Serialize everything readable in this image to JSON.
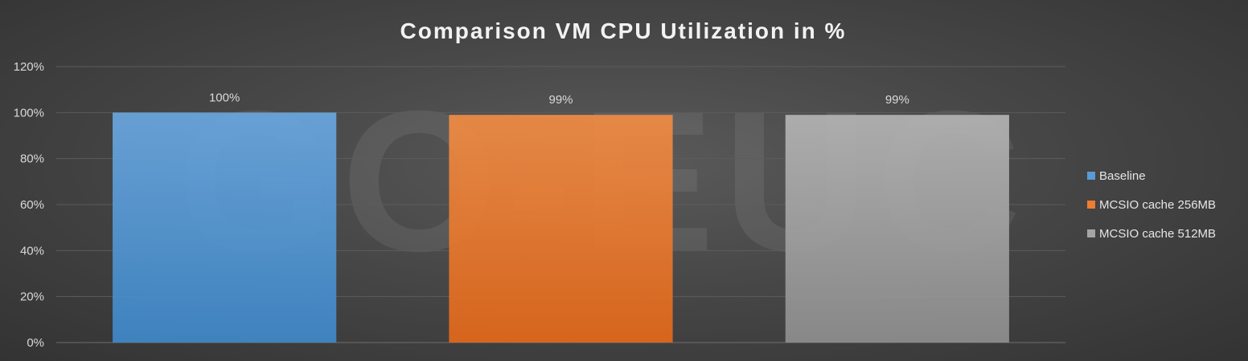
{
  "chart_data": {
    "type": "bar",
    "title": "Comparison VM CPU Utilization in %",
    "xlabel": "",
    "ylabel": "",
    "ylim": [
      0,
      120
    ],
    "yticks": [
      "0%",
      "20%",
      "40%",
      "60%",
      "80%",
      "100%",
      "120%"
    ],
    "categories": [
      "Baseline",
      "MCSIO cache 256MB",
      "MCSIO cache 512MB"
    ],
    "values": [
      100,
      99,
      99
    ],
    "data_labels": [
      "100%",
      "99%",
      "99%"
    ],
    "colors": [
      "#5b9bd5",
      "#ed7d31",
      "#a5a5a5"
    ],
    "grid": true,
    "legend": {
      "position": "right",
      "entries": [
        "Baseline",
        "MCSIO cache 256MB",
        "MCSIO cache 512MB"
      ]
    },
    "watermark": "GO-EUC"
  }
}
